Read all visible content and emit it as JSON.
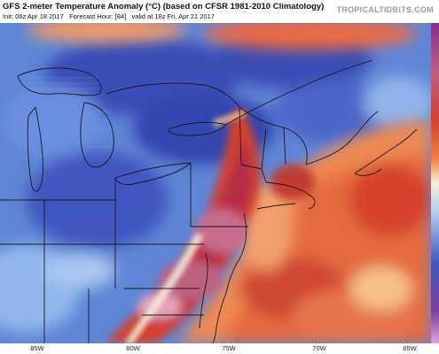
{
  "header": {
    "title": "GFS 2-meter Temperature Anomaly (°C) (based on CFSR 1981-2010 Climatology)",
    "init": "Init: 06z Apr 18 2017",
    "forecast_hour": "Forecast Hour: [84]",
    "valid": "valid at 18z Fri, Apr 21 2017",
    "brand": "TROPICALTIDBITS.COM"
  },
  "map": {
    "x_ticks": [
      "85W",
      "80W",
      "75W",
      "70W",
      "65W"
    ],
    "colors": {
      "very_cold": "#2a2f8f",
      "cold": "#3f56c0",
      "cool": "#6a8fe0",
      "mild_cool": "#a9c8f0",
      "neutral": "#f4f1dc",
      "mild_warm": "#f6c08a",
      "warm": "#ec7d44",
      "hot": "#d6402c",
      "very_hot": "#b52d45",
      "extreme": "#c86a8c"
    }
  }
}
